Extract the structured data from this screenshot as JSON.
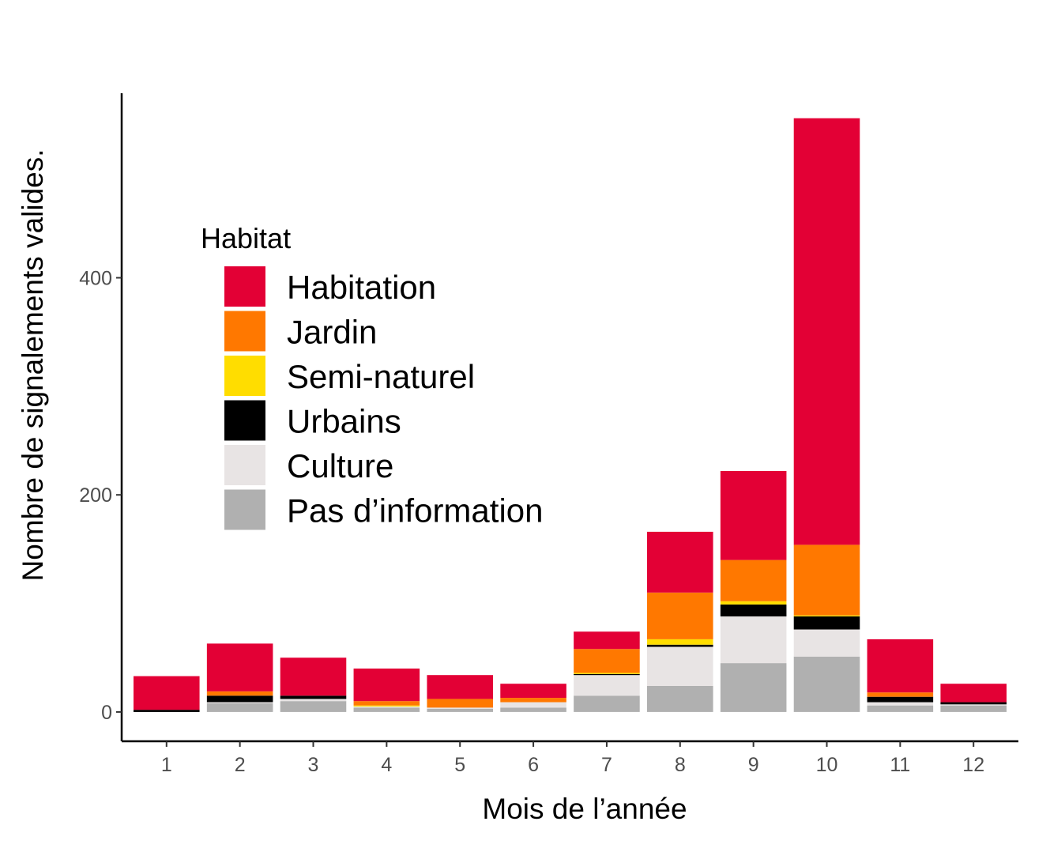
{
  "chart_data": {
    "type": "bar",
    "stacked": true,
    "xlabel": "Mois de l’année",
    "ylabel": "Nombre de signalements valides.",
    "categories": [
      "1",
      "2",
      "3",
      "4",
      "5",
      "6",
      "7",
      "8",
      "9",
      "10",
      "11",
      "12"
    ],
    "yticks": [
      0,
      200,
      400
    ],
    "ylim": [
      -27,
      570
    ],
    "grid": false,
    "legend": {
      "title": "Habitat",
      "placement": "top-left inside"
    },
    "series": [
      {
        "name": "Pas d’information",
        "color": "#B0B0B0",
        "values": [
          0,
          8,
          10,
          4,
          3,
          4,
          15,
          24,
          45,
          51,
          6,
          6
        ]
      },
      {
        "name": "Culture",
        "color": "#E8E4E4",
        "values": [
          0,
          1,
          2,
          1,
          1,
          5,
          19,
          36,
          43,
          25,
          3,
          1
        ]
      },
      {
        "name": "Urbains",
        "color": "#000000",
        "values": [
          2,
          6,
          3,
          0,
          0,
          0,
          1,
          2,
          11,
          12,
          5,
          2
        ]
      },
      {
        "name": "Semi-naturel",
        "color": "#FFDD00",
        "values": [
          0,
          0,
          0,
          1,
          0,
          0,
          1,
          5,
          3,
          1,
          0,
          0
        ]
      },
      {
        "name": "Jardin",
        "color": "#FF7800",
        "values": [
          0,
          4,
          0,
          4,
          8,
          4,
          22,
          43,
          38,
          65,
          4,
          0
        ]
      },
      {
        "name": "Habitation",
        "color": "#E30035",
        "values": [
          31,
          44,
          35,
          30,
          22,
          13,
          16,
          56,
          82,
          393,
          49,
          17
        ]
      }
    ],
    "legend_order": [
      "Habitation",
      "Jardin",
      "Semi-naturel",
      "Urbains",
      "Culture",
      "Pas d’information"
    ]
  }
}
